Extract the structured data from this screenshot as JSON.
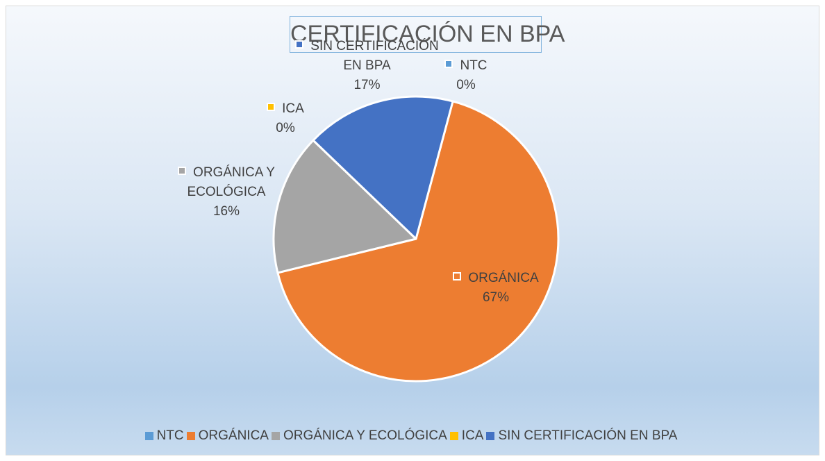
{
  "chart_data": {
    "type": "pie",
    "title": "CERTIFICACIÓN EN BPA",
    "categories": [
      "NTC",
      "ORGÁNICA",
      "ORGÁNICA Y ECOLÓGICA",
      "ICA",
      "SIN CERTIFICACIÓN EN BPA"
    ],
    "values": [
      0,
      67,
      16,
      0,
      17
    ],
    "value_labels": [
      "0%",
      "67%",
      "16%",
      "0%",
      "17%"
    ],
    "colors": [
      "#5b9bd5",
      "#ed7d31",
      "#a5a5a5",
      "#ffc000",
      "#4472c4"
    ],
    "legend": "bottom"
  }
}
